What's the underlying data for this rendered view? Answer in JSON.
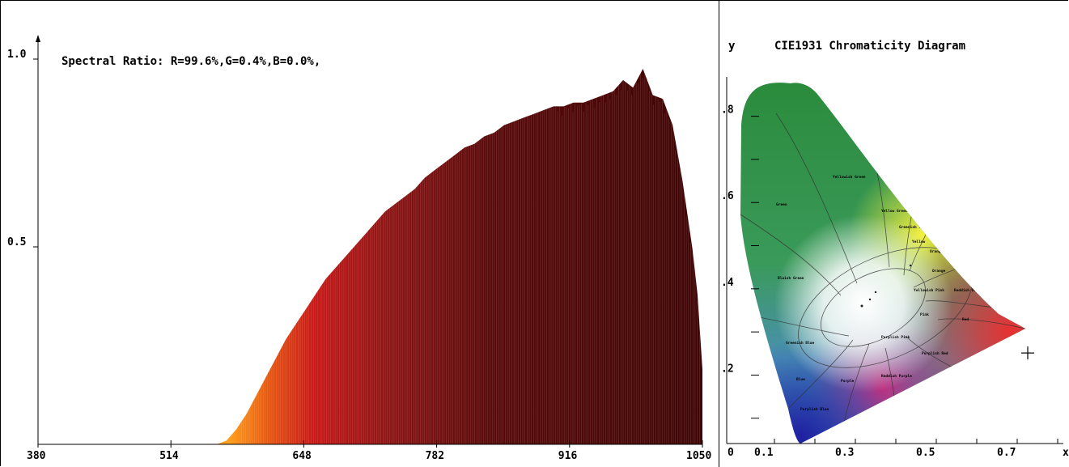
{
  "spectrum": {
    "chart_data": {
      "type": "area",
      "title": "Spectral Ratio:  R=99.6%,G=0.4%,B=0.0%,",
      "xlabel": "",
      "ylabel": "",
      "x_ticks": [
        "380",
        "514",
        "648",
        "782",
        "916",
        "1050"
      ],
      "y_ticks": [
        "1.0",
        "0.5"
      ],
      "xlim": [
        380,
        1050
      ],
      "ylim": [
        0,
        1.0
      ],
      "x": [
        380,
        560,
        570,
        580,
        590,
        600,
        610,
        620,
        630,
        640,
        650,
        660,
        670,
        680,
        690,
        700,
        710,
        720,
        730,
        740,
        750,
        760,
        770,
        780,
        790,
        800,
        810,
        820,
        830,
        840,
        850,
        860,
        870,
        880,
        890,
        900,
        910,
        920,
        930,
        940,
        950,
        960,
        970,
        980,
        990,
        1000,
        1010,
        1020,
        1030,
        1040,
        1045,
        1050
      ],
      "values": [
        0,
        0,
        0.01,
        0.04,
        0.08,
        0.13,
        0.18,
        0.23,
        0.28,
        0.32,
        0.36,
        0.4,
        0.44,
        0.47,
        0.5,
        0.53,
        0.56,
        0.59,
        0.62,
        0.64,
        0.66,
        0.68,
        0.71,
        0.73,
        0.75,
        0.77,
        0.79,
        0.8,
        0.82,
        0.83,
        0.85,
        0.86,
        0.87,
        0.88,
        0.89,
        0.9,
        0.9,
        0.91,
        0.91,
        0.92,
        0.93,
        0.94,
        0.97,
        0.95,
        1.0,
        0.93,
        0.92,
        0.85,
        0.7,
        0.52,
        0.4,
        0.2
      ]
    },
    "colors": {
      "orange": "#f08010",
      "red": "#c01010",
      "dark": "#4a0808"
    }
  },
  "cie": {
    "chart_data": {
      "type": "scatter",
      "title": "CIE1931 Chromaticity Diagram",
      "xlabel": "x",
      "ylabel": "y",
      "x_ticks": [
        "0.1",
        "0.3",
        "0.5",
        "0.7"
      ],
      "y_ticks": [
        ".8",
        ".6",
        ".4",
        ".2"
      ],
      "origin_label": "0",
      "xlim": [
        0,
        0.8
      ],
      "ylim": [
        0,
        0.85
      ],
      "point": {
        "x": 0.7,
        "y": 0.3
      }
    },
    "regions": [
      "Green",
      "Yellowish Green",
      "Yellow Green",
      "Greenish Yellow",
      "Yellow",
      "Orange Yellow",
      "Orange",
      "Reddish Orange",
      "Red",
      "Bluish Green",
      "Yellowish Pink",
      "Pink",
      "Greenish Blue",
      "Purplish Pink",
      "Purplish Red",
      "Blue",
      "Purple",
      "Reddish Purple",
      "Purplish Blue"
    ]
  }
}
